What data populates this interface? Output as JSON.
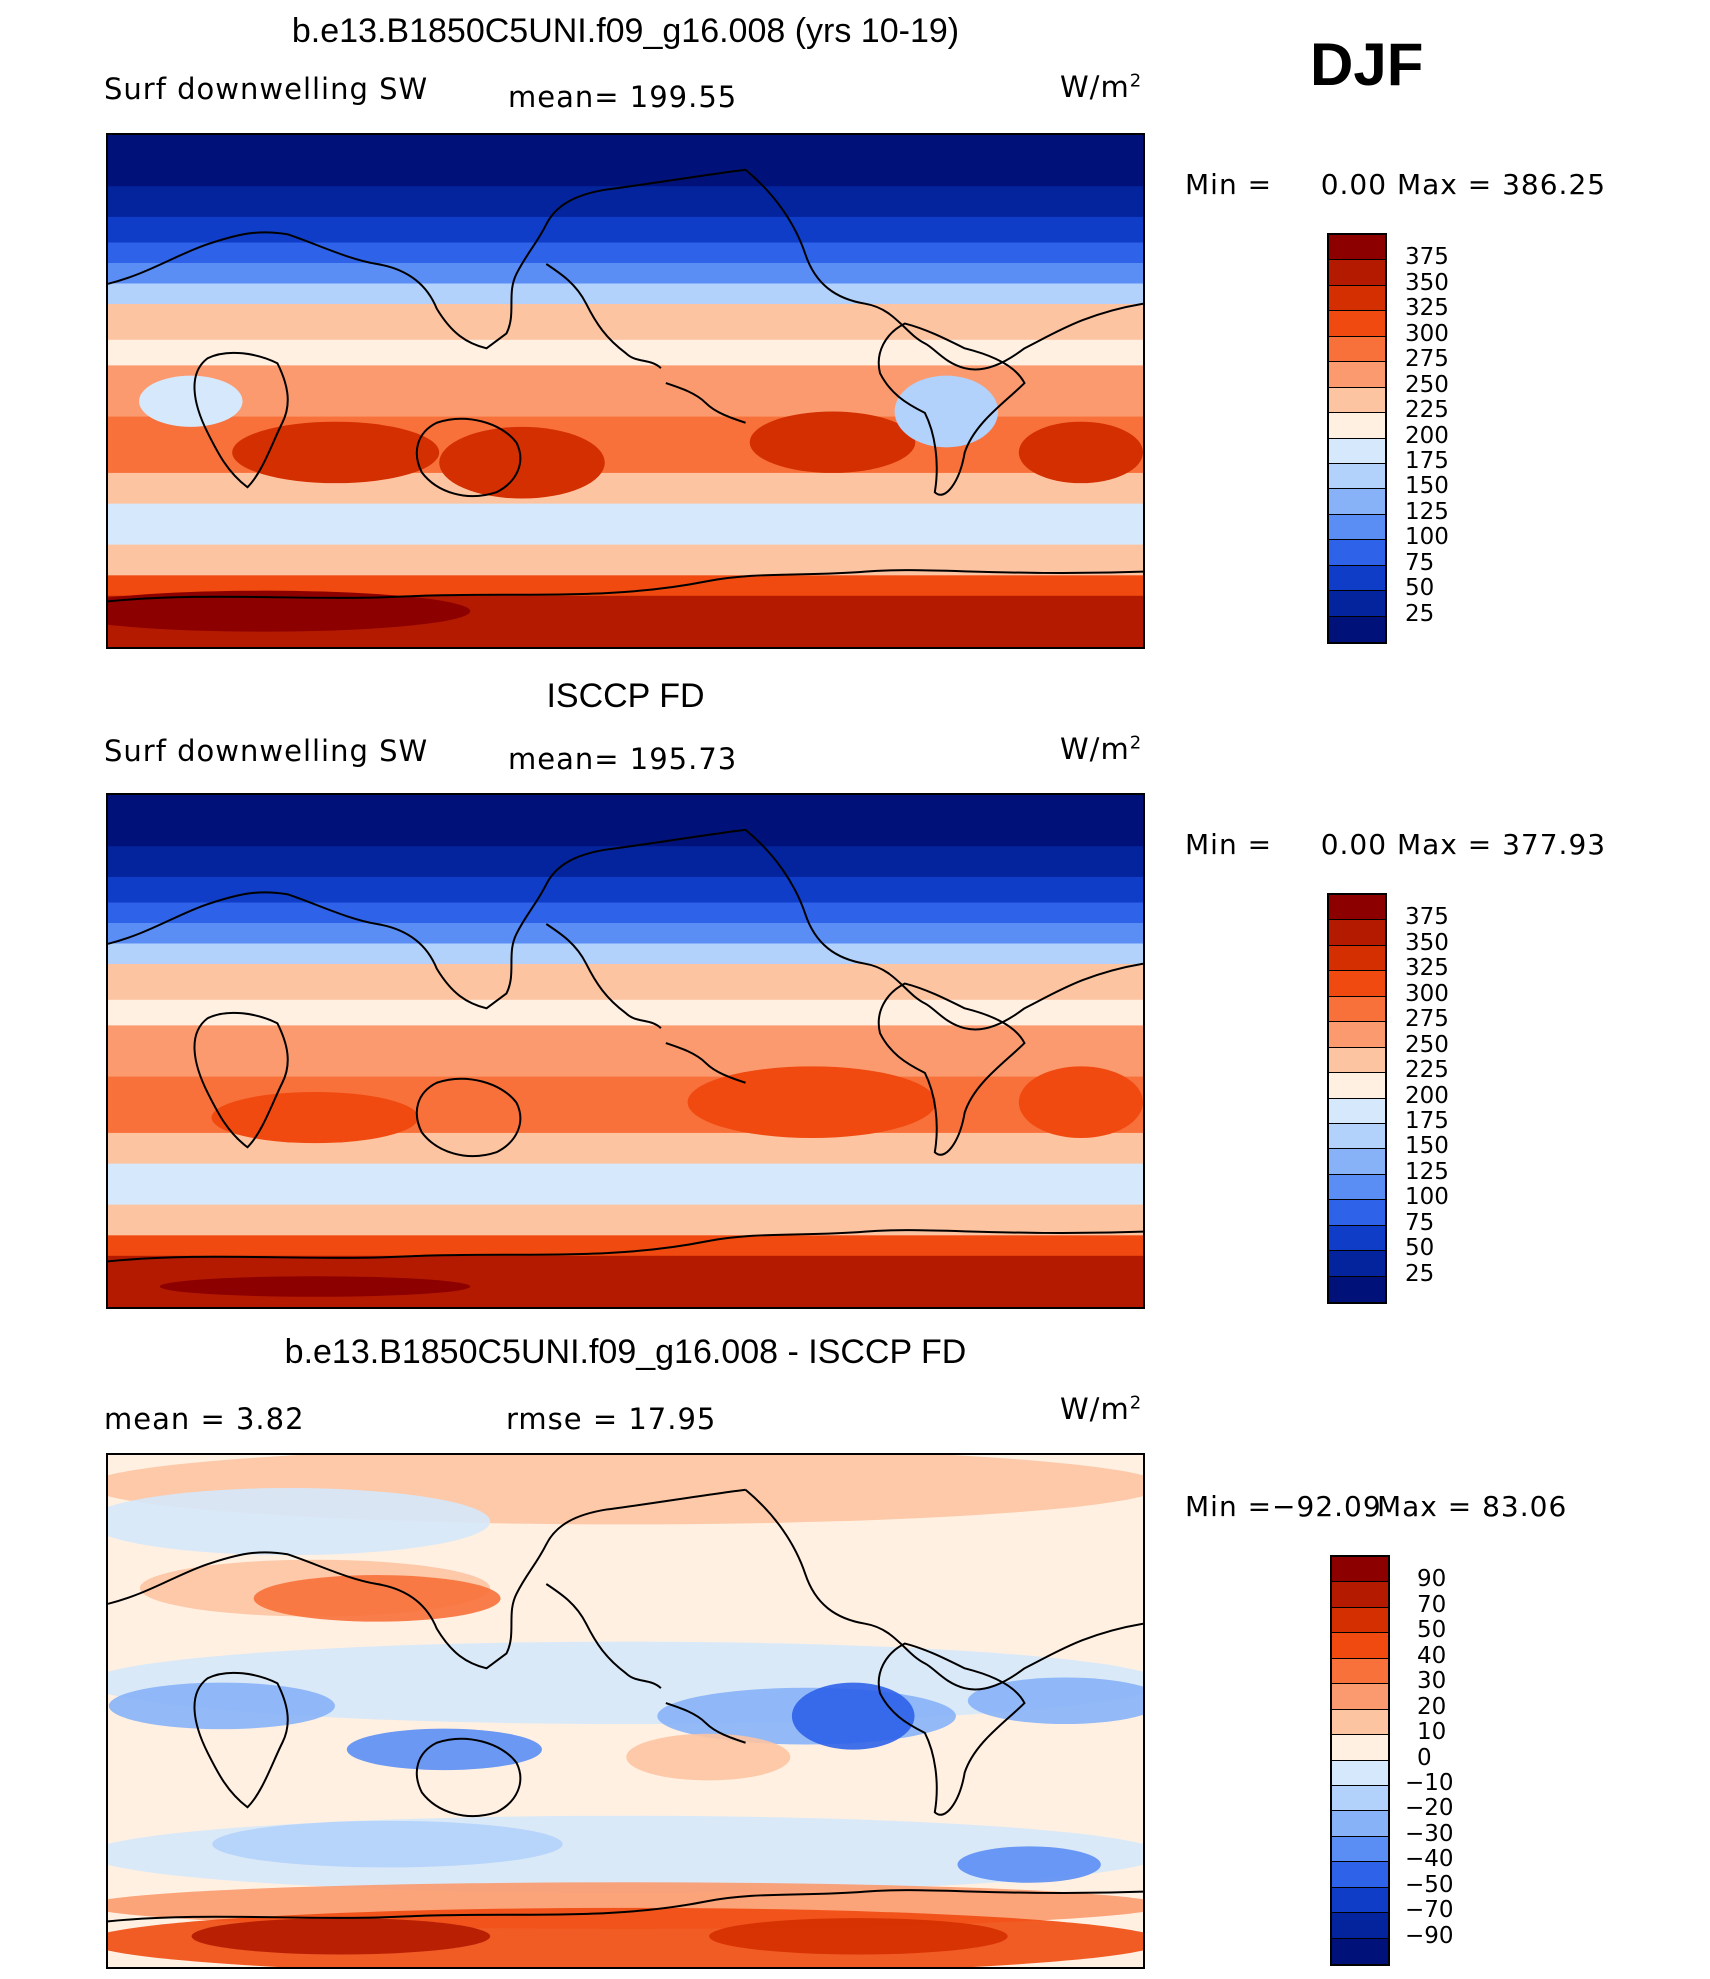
{
  "season": "DJF",
  "panels": [
    {
      "title": "b.e13.B1850C5UNI.f09_g16.008 (yrs 10-19)",
      "left_label": "Surf  downwelling  SW",
      "center_label": "mean=  199.55",
      "units_text": "W/m",
      "units_sup": "2",
      "min_text": "Min  =",
      "min_val": "0.00",
      "max_text": "Max  =  386.25",
      "colorbar": {
        "labels": [
          "375",
          "350",
          "325",
          "300",
          "275",
          "250",
          "225",
          "200",
          "175",
          "150",
          "125",
          "100",
          "75",
          "50",
          "25"
        ],
        "colors": [
          "#8c0000",
          "#b31a00",
          "#d42f00",
          "#f04a10",
          "#f8703a",
          "#fb9a6e",
          "#fdc4a2",
          "#fff0e2",
          "#d6e8fb",
          "#b2d1fb",
          "#87b2f8",
          "#5b8ef5",
          "#2e62e9",
          "#0f3dc8",
          "#03249c",
          "#00127a"
        ]
      },
      "map_style": "model"
    },
    {
      "title": "ISCCP FD",
      "left_label": "Surf  downwelling  SW",
      "center_label": "mean=  195.73",
      "units_text": "W/m",
      "units_sup": "2",
      "min_text": "Min  =",
      "min_val": "0.00",
      "max_text": "Max  =  377.93",
      "colorbar": {
        "labels": [
          "375",
          "350",
          "325",
          "300",
          "275",
          "250",
          "225",
          "200",
          "175",
          "150",
          "125",
          "100",
          "75",
          "50",
          "25"
        ],
        "colors": [
          "#8c0000",
          "#b31a00",
          "#d42f00",
          "#f04a10",
          "#f8703a",
          "#fb9a6e",
          "#fdc4a2",
          "#fff0e2",
          "#d6e8fb",
          "#b2d1fb",
          "#87b2f8",
          "#5b8ef5",
          "#2e62e9",
          "#0f3dc8",
          "#03249c",
          "#00127a"
        ]
      },
      "map_style": "obs"
    },
    {
      "title": "b.e13.B1850C5UNI.f09_g16.008 - ISCCP FD",
      "left_label": "mean  =     3.82",
      "center_label": "rmse  =    17.95",
      "units_text": "W/m",
      "units_sup": "2",
      "min_text": "Min  =",
      "min_val": "−92.09",
      "max_text": "Max  =    83.06",
      "colorbar": {
        "labels": [
          "90",
          "70",
          "50",
          "40",
          "30",
          "20",
          "10",
          "0",
          "−10",
          "−20",
          "−30",
          "−40",
          "−50",
          "−70",
          "−90"
        ],
        "colors": [
          "#8c0000",
          "#b31a00",
          "#d42f00",
          "#f04a10",
          "#f8703a",
          "#fb9a6e",
          "#fdc4a2",
          "#fff0e2",
          "#d6e8fb",
          "#b2d1fb",
          "#87b2f8",
          "#5b8ef5",
          "#2e62e9",
          "#0f3dc8",
          "#03249c",
          "#00127a"
        ]
      },
      "map_style": "diff"
    }
  ]
}
